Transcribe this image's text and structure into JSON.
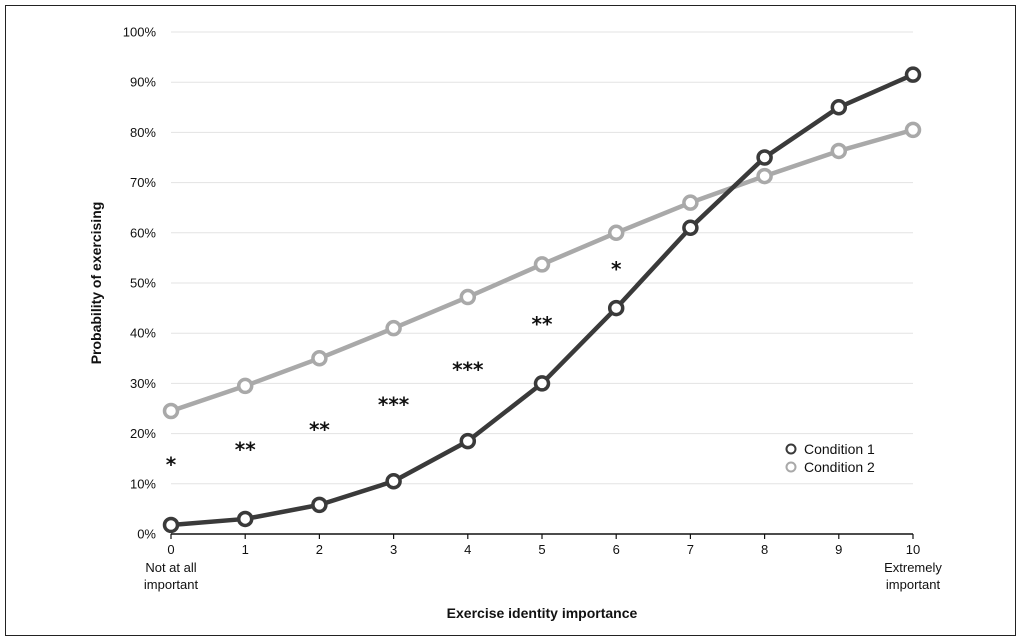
{
  "chart_data": {
    "type": "line",
    "xlabel": "Exercise identity importance",
    "ylabel": "Probability of exercising",
    "x": [
      0,
      1,
      2,
      3,
      4,
      5,
      6,
      7,
      8,
      9,
      10
    ],
    "x_tick_labels": [
      "0",
      "1",
      "2",
      "3",
      "4",
      "5",
      "6",
      "7",
      "8",
      "9",
      "10"
    ],
    "x_end_labels": {
      "left": [
        "Not at all",
        "important"
      ],
      "right": [
        "Extremely",
        "important"
      ]
    },
    "ylim": [
      0,
      100
    ],
    "y_ticks": [
      0,
      10,
      20,
      30,
      40,
      50,
      60,
      70,
      80,
      90,
      100
    ],
    "y_tick_labels": [
      "0%",
      "10%",
      "20%",
      "30%",
      "40%",
      "50%",
      "60%",
      "70%",
      "80%",
      "90%",
      "100%"
    ],
    "grid": "horizontal",
    "legend_position": "bottom-right",
    "series": [
      {
        "name": "Condition 1",
        "color": "#3a3a3a",
        "values": [
          1.8,
          3.0,
          5.8,
          10.5,
          18.5,
          30.0,
          45.0,
          61.0,
          75.0,
          85.0,
          91.5
        ]
      },
      {
        "name": "Condition 2",
        "color": "#a9a9a9",
        "values": [
          24.5,
          29.5,
          35.0,
          41.0,
          47.2,
          53.7,
          60.0,
          66.0,
          71.3,
          76.3,
          80.5
        ]
      }
    ],
    "annotations": [
      {
        "x": 0,
        "y": 14,
        "text": "*"
      },
      {
        "x": 1,
        "y": 17,
        "text": "**"
      },
      {
        "x": 2,
        "y": 21,
        "text": "**"
      },
      {
        "x": 3,
        "y": 26,
        "text": "***"
      },
      {
        "x": 4,
        "y": 33,
        "text": "***"
      },
      {
        "x": 5,
        "y": 42,
        "text": "**"
      },
      {
        "x": 6,
        "y": 53,
        "text": "*"
      }
    ]
  }
}
